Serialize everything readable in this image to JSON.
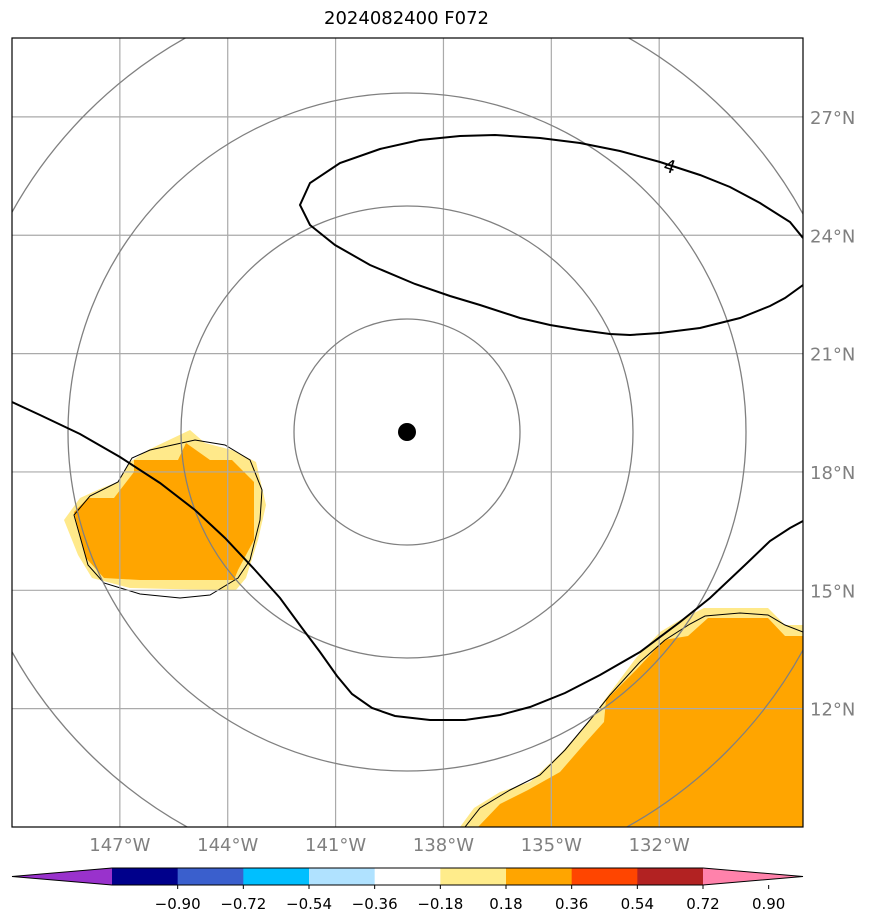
{
  "title": "2024082400 F072",
  "map": {
    "lon_range": [
      -150,
      -128
    ],
    "lat_range": [
      9,
      29
    ],
    "lon_ticks": [
      {
        "value": -147,
        "label": "147°W"
      },
      {
        "value": -144,
        "label": "144°W"
      },
      {
        "value": -141,
        "label": "141°W"
      },
      {
        "value": -138,
        "label": "138°W"
      },
      {
        "value": -135,
        "label": "135°W"
      },
      {
        "value": -132,
        "label": "132°W"
      }
    ],
    "lat_ticks": [
      {
        "value": 12,
        "label": "12°N"
      },
      {
        "value": 15,
        "label": "15°N"
      },
      {
        "value": 18,
        "label": "18°N"
      },
      {
        "value": 21,
        "label": "21°N"
      },
      {
        "value": 24,
        "label": "24°N"
      },
      {
        "value": 27,
        "label": "27°N"
      }
    ],
    "storm_center": {
      "lon": -139.0,
      "lat": 19.2
    },
    "contour_label": "4",
    "colors": {
      "frame": "#000000",
      "grid": "#aaaaaa",
      "range_rings": "#808080",
      "contour": "#000000",
      "fill_light": "#ffe98a",
      "fill_orange": "#ffa500",
      "tick_label": "#808080"
    }
  },
  "colorbar": {
    "tick_labels": [
      "−0.90",
      "−0.72",
      "−0.54",
      "−0.36",
      "−0.18",
      "0.18",
      "0.36",
      "0.54",
      "0.72",
      "0.90"
    ],
    "colors": [
      "#9932cc",
      "#00008b",
      "#3a5fcd",
      "#00bfff",
      "#b0e2ff",
      "#ffffff",
      "#ffec8b",
      "#ffa500",
      "#ff4500",
      "#b22222",
      "#ff82ab"
    ]
  }
}
